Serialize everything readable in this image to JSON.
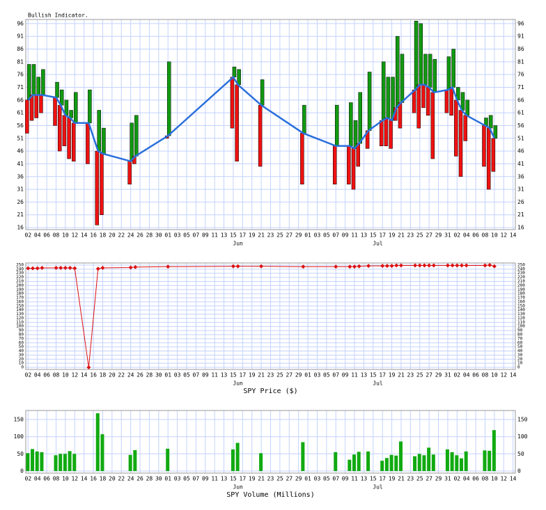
{
  "x_axis": {
    "xlim": [
      -0.5,
      104.5
    ],
    "xticks": [
      {
        "value": 0,
        "label": "02"
      },
      {
        "value": 2,
        "label": "04"
      },
      {
        "value": 4,
        "label": "06"
      },
      {
        "value": 6,
        "label": "08"
      },
      {
        "value": 8,
        "label": "10"
      },
      {
        "value": 10,
        "label": "12"
      },
      {
        "value": 12,
        "label": "14"
      },
      {
        "value": 14,
        "label": "16"
      },
      {
        "value": 16,
        "label": "18"
      },
      {
        "value": 18,
        "label": "20"
      },
      {
        "value": 20,
        "label": "22"
      },
      {
        "value": 22,
        "label": "24"
      },
      {
        "value": 24,
        "label": "26"
      },
      {
        "value": 26,
        "label": "28"
      },
      {
        "value": 28,
        "label": "30"
      },
      {
        "value": 30,
        "label": "01"
      },
      {
        "value": 32,
        "label": "03"
      },
      {
        "value": 34,
        "label": "05"
      },
      {
        "value": 36,
        "label": "07"
      },
      {
        "value": 38,
        "label": "09"
      },
      {
        "value": 40,
        "label": "11"
      },
      {
        "value": 42,
        "label": "13"
      },
      {
        "value": 44,
        "label": "15"
      },
      {
        "value": 46,
        "label": "17"
      },
      {
        "value": 48,
        "label": "19"
      },
      {
        "value": 50,
        "label": "21"
      },
      {
        "value": 52,
        "label": "23"
      },
      {
        "value": 54,
        "label": "25"
      },
      {
        "value": 56,
        "label": "27"
      },
      {
        "value": 58,
        "label": "29"
      },
      {
        "value": 60,
        "label": "01"
      },
      {
        "value": 62,
        "label": "03"
      },
      {
        "value": 64,
        "label": "05"
      },
      {
        "value": 66,
        "label": "07"
      },
      {
        "value": 68,
        "label": "09"
      },
      {
        "value": 70,
        "label": "11"
      },
      {
        "value": 72,
        "label": "13"
      },
      {
        "value": 74,
        "label": "15"
      },
      {
        "value": 76,
        "label": "17"
      },
      {
        "value": 78,
        "label": "19"
      },
      {
        "value": 80,
        "label": "21"
      },
      {
        "value": 82,
        "label": "23"
      },
      {
        "value": 84,
        "label": "25"
      },
      {
        "value": 86,
        "label": "27"
      },
      {
        "value": 88,
        "label": "29"
      },
      {
        "value": 90,
        "label": "31"
      },
      {
        "value": 92,
        "label": "02"
      },
      {
        "value": 94,
        "label": "04"
      },
      {
        "value": 96,
        "label": "06"
      },
      {
        "value": 98,
        "label": "08"
      },
      {
        "value": 100,
        "label": "10"
      },
      {
        "value": 102,
        "label": "12"
      },
      {
        "value": 104,
        "label": "14"
      }
    ],
    "months": [
      {
        "value": 45,
        "label": "Jun"
      },
      {
        "value": 75,
        "label": "Jul"
      }
    ],
    "grid": true,
    "grid_color": "#c4d2ff"
  },
  "chart_data": [
    {
      "type": "range",
      "title": "Bullish Indicator.",
      "x": [
        0,
        1,
        2,
        3,
        6,
        7,
        8,
        9,
        10,
        13,
        15,
        16,
        22,
        23,
        30,
        44,
        45,
        50,
        59,
        66,
        69,
        70,
        71,
        73,
        76,
        77,
        78,
        79,
        80,
        83,
        84,
        85,
        86,
        87,
        90,
        91,
        92,
        93,
        94,
        98,
        99,
        100
      ],
      "high": [
        80,
        80,
        75,
        78,
        73,
        70,
        66,
        62,
        69,
        70,
        62,
        55,
        57,
        60,
        81,
        79,
        78,
        74,
        64,
        64,
        65,
        58,
        69,
        77,
        81,
        75,
        75,
        91,
        84,
        97,
        96,
        84,
        84,
        82,
        83,
        86,
        71,
        69,
        66,
        59,
        60,
        56
      ],
      "low": [
        53,
        58,
        59,
        61,
        56,
        46,
        48,
        43,
        42,
        41,
        17,
        21,
        33,
        41,
        51,
        55,
        42,
        40,
        33,
        33,
        33,
        31,
        40,
        47,
        48,
        48,
        47,
        58,
        55,
        61,
        55,
        63,
        60,
        43,
        61,
        60,
        44,
        36,
        50,
        40,
        31,
        38
      ],
      "values": [
        66,
        68,
        68,
        68,
        67,
        64,
        60,
        59,
        57,
        57,
        46,
        45,
        42,
        44,
        52,
        75,
        72,
        64,
        53,
        48,
        48,
        47,
        49,
        54,
        58,
        59,
        58,
        63,
        65,
        70,
        72,
        72,
        71,
        69,
        70,
        71,
        66,
        62,
        60,
        56,
        55,
        51
      ],
      "up_color": "#119911",
      "down_color": "#ee1111",
      "line_color": "#2a6fdb",
      "ylim": [
        15.2,
        97.6
      ],
      "yticks": [
        16,
        21,
        26,
        31,
        36,
        41,
        46,
        51,
        56,
        61,
        66,
        71,
        76,
        81,
        86,
        91,
        96
      ]
    },
    {
      "type": "line",
      "ylabel": "SPY Price ($)",
      "x": [
        0,
        1,
        2,
        3,
        6,
        7,
        8,
        9,
        10,
        13,
        15,
        16,
        22,
        23,
        30,
        44,
        45,
        50,
        59,
        66,
        69,
        70,
        71,
        73,
        76,
        77,
        78,
        79,
        80,
        83,
        84,
        85,
        86,
        87,
        90,
        91,
        92,
        93,
        94,
        98,
        99,
        100
      ],
      "values": [
        242,
        242,
        242,
        243,
        243,
        243,
        243,
        243,
        242,
        0,
        241,
        243,
        244,
        245,
        246,
        247,
        247,
        247,
        246,
        246,
        246,
        246,
        247,
        248,
        248,
        248,
        248,
        249,
        249,
        249,
        249,
        249,
        249,
        249,
        249,
        249,
        249,
        249,
        249,
        249,
        250,
        247
      ],
      "color": "#dd1111",
      "ylim": [
        -5,
        255
      ],
      "yticks": [
        0,
        10,
        20,
        30,
        40,
        50,
        60,
        70,
        80,
        90,
        100,
        110,
        120,
        130,
        140,
        150,
        160,
        170,
        180,
        190,
        200,
        210,
        220,
        230,
        240,
        250
      ]
    },
    {
      "type": "bar",
      "ylabel": "SPY Volume (Millions)",
      "x": [
        0,
        1,
        2,
        3,
        6,
        7,
        8,
        9,
        10,
        13,
        15,
        16,
        22,
        23,
        30,
        44,
        45,
        50,
        59,
        66,
        69,
        70,
        71,
        73,
        76,
        77,
        78,
        79,
        80,
        83,
        84,
        85,
        86,
        87,
        90,
        91,
        92,
        93,
        94,
        98,
        99,
        100
      ],
      "values": [
        52,
        64,
        57,
        55,
        46,
        50,
        50,
        58,
        50,
        null,
        168,
        107,
        47,
        61,
        65,
        63,
        82,
        52,
        84,
        55,
        33,
        48,
        56,
        57,
        30,
        38,
        47,
        45,
        86,
        43,
        50,
        46,
        68,
        48,
        63,
        55,
        46,
        37,
        57,
        60,
        59,
        119
      ],
      "color": "#11aa11",
      "ylim": [
        -6,
        176
      ],
      "yticks": [
        0,
        50,
        100,
        150
      ]
    }
  ]
}
